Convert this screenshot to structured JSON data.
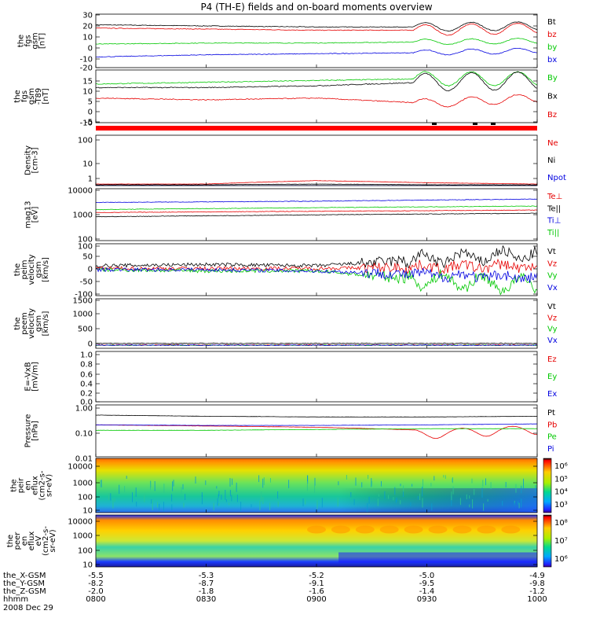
{
  "title": "P4 (TH-E) fields and on-board moments overview",
  "date": "2008 Dec 29",
  "panels": [
    {
      "id": "fgs-gsm",
      "ylabel": [
        "the",
        "fgs",
        "gsm",
        "[nT]"
      ],
      "yticks": [
        "30",
        "20",
        "10",
        "0",
        "-10",
        "-20"
      ],
      "legend": [
        {
          "text": "Bt",
          "color": "#000000"
        },
        {
          "text": "bz",
          "color": "#e60000"
        },
        {
          "text": "by",
          "color": "#00c800"
        },
        {
          "text": "bx",
          "color": "#0000e0"
        }
      ]
    },
    {
      "id": "fgs-gsm-t89",
      "ylabel": [
        "the",
        "fgs",
        "gsm",
        "-T89",
        "[nT]"
      ],
      "yticks": [
        "15",
        "10",
        "5",
        "0",
        "-5",
        "-10"
      ],
      "legend": [
        {
          "text": "By",
          "color": "#00c800"
        },
        {
          "text": "Bx",
          "color": "#000000"
        },
        {
          "text": "Bz",
          "color": "#e60000"
        }
      ]
    },
    {
      "id": "density",
      "ylabel": [
        "Density",
        "[cm-3]"
      ],
      "yticks": [
        "100",
        "10",
        "1"
      ],
      "legend": [
        {
          "text": "Ne",
          "color": "#e60000"
        },
        {
          "text": "Ni",
          "color": "#000000"
        },
        {
          "text": "Npot",
          "color": "#0000e0"
        }
      ]
    },
    {
      "id": "temperature",
      "ylabel": [
        "mag13",
        "[eV]"
      ],
      "yticks": [
        "10000",
        "1000",
        "100"
      ],
      "legend": [
        {
          "text": "Te⊥",
          "color": "#e60000"
        },
        {
          "text": "Te||",
          "color": "#000000"
        },
        {
          "text": "Ti⊥",
          "color": "#0000e0"
        },
        {
          "text": "Ti||",
          "color": "#00c800"
        }
      ]
    },
    {
      "id": "peim-velocity",
      "ylabel": [
        "the",
        "peim",
        "velocity",
        "gsm",
        "[km/s]"
      ],
      "yticks": [
        "100",
        "50",
        "0",
        "-50",
        "-100"
      ],
      "legend": [
        {
          "text": "Vt",
          "color": "#000000"
        },
        {
          "text": "Vz",
          "color": "#e60000"
        },
        {
          "text": "Vy",
          "color": "#00c800"
        },
        {
          "text": "Vx",
          "color": "#0000e0"
        }
      ]
    },
    {
      "id": "peem-velocity",
      "ylabel": [
        "the",
        "peem",
        "velocity",
        "gsm",
        "[km/s]"
      ],
      "yticks": [
        "1500",
        "1000",
        "500",
        "0"
      ],
      "legend": [
        {
          "text": "Vt",
          "color": "#000000"
        },
        {
          "text": "Vz",
          "color": "#e60000"
        },
        {
          "text": "Vy",
          "color": "#00c800"
        },
        {
          "text": "Vx",
          "color": "#0000e0"
        }
      ]
    },
    {
      "id": "efield",
      "ylabel": [
        "E=-VxB",
        "[mV/m]"
      ],
      "yticks": [
        "1.0",
        "0.8",
        "0.6",
        "0.4",
        "0.2",
        "0.0"
      ],
      "legend": [
        {
          "text": "Ez",
          "color": "#e60000"
        },
        {
          "text": "Ey",
          "color": "#00c800"
        },
        {
          "text": "Ex",
          "color": "#0000e0"
        }
      ]
    },
    {
      "id": "pressure",
      "ylabel": [
        "Pressure",
        "[nPa]"
      ],
      "yticks": [
        "1.00",
        "0.10",
        "0.01"
      ],
      "legend": [
        {
          "text": "Pt",
          "color": "#000000"
        },
        {
          "text": "Pb",
          "color": "#e60000"
        },
        {
          "text": "Pe",
          "color": "#00c800"
        },
        {
          "text": "Pi",
          "color": "#0000e0"
        }
      ]
    },
    {
      "id": "peir-spec",
      "ylabel": [
        "the",
        "peir",
        "en",
        "eflux",
        "(cm2-s-",
        "sr-eV)"
      ],
      "yticks": [
        "10000",
        "1000",
        "100",
        "10"
      ],
      "colorbar": [
        "10⁶",
        "10⁵",
        "10⁴",
        "10³"
      ]
    },
    {
      "id": "peer-spec",
      "ylabel": [
        "the",
        "peer",
        "en",
        "eflux",
        "eV",
        "(cm2-s-",
        "sr-eV)"
      ],
      "yticks": [
        "10000",
        "1000",
        "100",
        "10"
      ],
      "colorbar": [
        "10⁸",
        "10⁷",
        "10⁶"
      ]
    }
  ],
  "xaxis": {
    "rows": [
      {
        "label": "the_X-GSM",
        "values": [
          "-5.5",
          "-5.3",
          "-5.2",
          "-5.0",
          "-4.9"
        ]
      },
      {
        "label": "the_Y-GSM",
        "values": [
          "-8.2",
          "-8.7",
          "-9.1",
          "-9.5",
          "-9.8"
        ]
      },
      {
        "label": "the_Z-GSM",
        "values": [
          "-2.0",
          "-1.8",
          "-1.6",
          "-1.4",
          "-1.2"
        ]
      },
      {
        "label": "hhmm",
        "values": [
          "0800",
          "0830",
          "0900",
          "0930",
          "1000"
        ]
      }
    ]
  },
  "chart_data": [
    {
      "type": "line",
      "panel": "fgs-gsm",
      "x": [
        "0800",
        "0830",
        "0900",
        "0930",
        "1000"
      ],
      "ylim": [
        -20,
        30
      ],
      "series": [
        {
          "name": "Bt",
          "values": [
            20,
            19,
            18,
            18,
            19
          ]
        },
        {
          "name": "bz",
          "values": [
            17,
            16,
            15,
            15,
            17
          ]
        },
        {
          "name": "by",
          "values": [
            2,
            3,
            3,
            4,
            5
          ]
        },
        {
          "name": "bx",
          "values": [
            -10,
            -8,
            -7,
            -6,
            -4
          ]
        }
      ]
    },
    {
      "type": "line",
      "panel": "fgs-gsm-t89",
      "x": [
        "0800",
        "0830",
        "0900",
        "0930",
        "1000"
      ],
      "ylim": [
        -15,
        15
      ],
      "series": [
        {
          "name": "By",
          "values": [
            7,
            8,
            9,
            10,
            10
          ]
        },
        {
          "name": "Bx",
          "values": [
            5,
            5,
            6,
            8,
            9
          ]
        },
        {
          "name": "Bz",
          "values": [
            -1,
            -2,
            -1,
            -4,
            -1
          ]
        }
      ]
    },
    {
      "type": "line",
      "panel": "density",
      "x": [
        "0800",
        "0830",
        "0900",
        "0930",
        "1000"
      ],
      "ylim": [
        0.5,
        200
      ],
      "scale": "log",
      "series": [
        {
          "name": "Ne",
          "values": [
            0.6,
            0.6,
            0.9,
            0.7,
            0.6
          ]
        },
        {
          "name": "Ni",
          "values": [
            0.55,
            0.55,
            0.6,
            0.55,
            0.55
          ]
        },
        {
          "name": "Npot",
          "values": [
            0.5,
            0.5,
            0.5,
            0.5,
            0.5
          ]
        }
      ]
    },
    {
      "type": "line",
      "panel": "temperature",
      "x": [
        "0800",
        "0830",
        "0900",
        "0930",
        "1000"
      ],
      "ylim": [
        100,
        15000
      ],
      "scale": "log",
      "series": [
        {
          "name": "Te⊥",
          "values": [
            1500,
            1600,
            1700,
            1800,
            1900
          ]
        },
        {
          "name": "Te||",
          "values": [
            1000,
            1100,
            1200,
            1300,
            1400
          ]
        },
        {
          "name": "Ti⊥",
          "values": [
            4000,
            4200,
            4500,
            5000,
            5500
          ]
        },
        {
          "name": "Ti||",
          "values": [
            2000,
            2200,
            2400,
            2600,
            2800
          ]
        }
      ]
    },
    {
      "type": "line",
      "panel": "peim-velocity",
      "x": [
        "0800",
        "0830",
        "0900",
        "0930",
        "1000"
      ],
      "ylim": [
        -100,
        100
      ],
      "series": [
        {
          "name": "Vt",
          "values": [
            15,
            20,
            15,
            40,
            60
          ]
        },
        {
          "name": "Vz",
          "values": [
            5,
            5,
            5,
            10,
            15
          ]
        },
        {
          "name": "Vy",
          "values": [
            0,
            -5,
            -5,
            -40,
            -60
          ]
        },
        {
          "name": "Vx",
          "values": [
            0,
            0,
            -5,
            -20,
            -30
          ]
        }
      ]
    },
    {
      "type": "line",
      "panel": "peem-velocity",
      "x": [
        "0800",
        "0830",
        "0900",
        "0930",
        "1000"
      ],
      "ylim": [
        -100,
        1500
      ],
      "series": [
        {
          "name": "Vt",
          "values": [
            60,
            60,
            60,
            60,
            60
          ]
        },
        {
          "name": "Vz",
          "values": [
            10,
            10,
            10,
            10,
            10
          ]
        },
        {
          "name": "Vy",
          "values": [
            0,
            0,
            0,
            0,
            0
          ]
        },
        {
          "name": "Vx",
          "values": [
            0,
            0,
            0,
            0,
            0
          ]
        }
      ]
    },
    {
      "type": "line",
      "panel": "pressure",
      "x": [
        "0800",
        "0830",
        "0900",
        "0930",
        "1000"
      ],
      "ylim": [
        0.01,
        1.3
      ],
      "scale": "log",
      "series": [
        {
          "name": "Pt",
          "values": [
            0.5,
            0.45,
            0.42,
            0.42,
            0.45
          ]
        },
        {
          "name": "Pb",
          "values": [
            0.2,
            0.18,
            0.16,
            0.12,
            0.18
          ]
        },
        {
          "name": "Pe",
          "values": [
            0.12,
            0.12,
            0.13,
            0.14,
            0.14
          ]
        },
        {
          "name": "Pi",
          "values": [
            0.2,
            0.19,
            0.19,
            0.2,
            0.22
          ]
        }
      ]
    },
    {
      "type": "heatmap",
      "panel": "peir-spec",
      "x": [
        "0800",
        "0830",
        "0900",
        "0930",
        "1000"
      ],
      "ylim": [
        10,
        20000
      ],
      "scale": "log"
    },
    {
      "type": "heatmap",
      "panel": "peer-spec",
      "x": [
        "0800",
        "0830",
        "0900",
        "0930",
        "1000"
      ],
      "ylim": [
        10,
        20000
      ],
      "scale": "log"
    }
  ]
}
